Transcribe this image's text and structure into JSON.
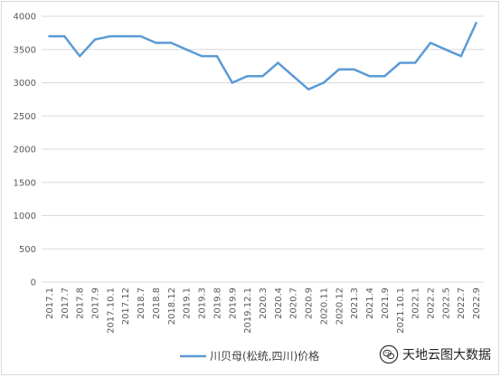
{
  "chart_data": {
    "type": "line",
    "title": "",
    "xlabel": "",
    "ylabel": "",
    "ylim": [
      0,
      4000
    ],
    "yticks": [
      0,
      500,
      1000,
      1500,
      2000,
      2500,
      3000,
      3500,
      4000
    ],
    "grid": "horizontal",
    "legend": "bottom",
    "x": [
      "2017.1",
      "2017.7",
      "2017.8",
      "2017.9",
      "2017.10.1",
      "2017.12",
      "2018.7",
      "2018.8",
      "2018.12",
      "2019.1",
      "2019.3",
      "2019.8",
      "2019.9",
      "2019.12.1",
      "2020.3",
      "2020.4",
      "2020.7",
      "2020.9",
      "2020.11",
      "2020.12",
      "2021.3",
      "2021.4",
      "2021.9",
      "2021.10.1",
      "2022.1",
      "2022.2",
      "2022.5",
      "2022.7",
      "2022.9"
    ],
    "series": [
      {
        "name": "川贝母(松统,四川)价格",
        "color": "#5b9bd5",
        "values": [
          3700,
          3700,
          3400,
          3650,
          3700,
          3700,
          3700,
          3600,
          3600,
          3500,
          3400,
          3400,
          3000,
          3100,
          3100,
          3300,
          3100,
          2900,
          3000,
          3200,
          3200,
          3100,
          3100,
          3300,
          3300,
          3600,
          3500,
          3400,
          3900
        ]
      }
    ]
  },
  "watermark": {
    "text": "天地云图大数据",
    "icon": "wechat-icon"
  }
}
